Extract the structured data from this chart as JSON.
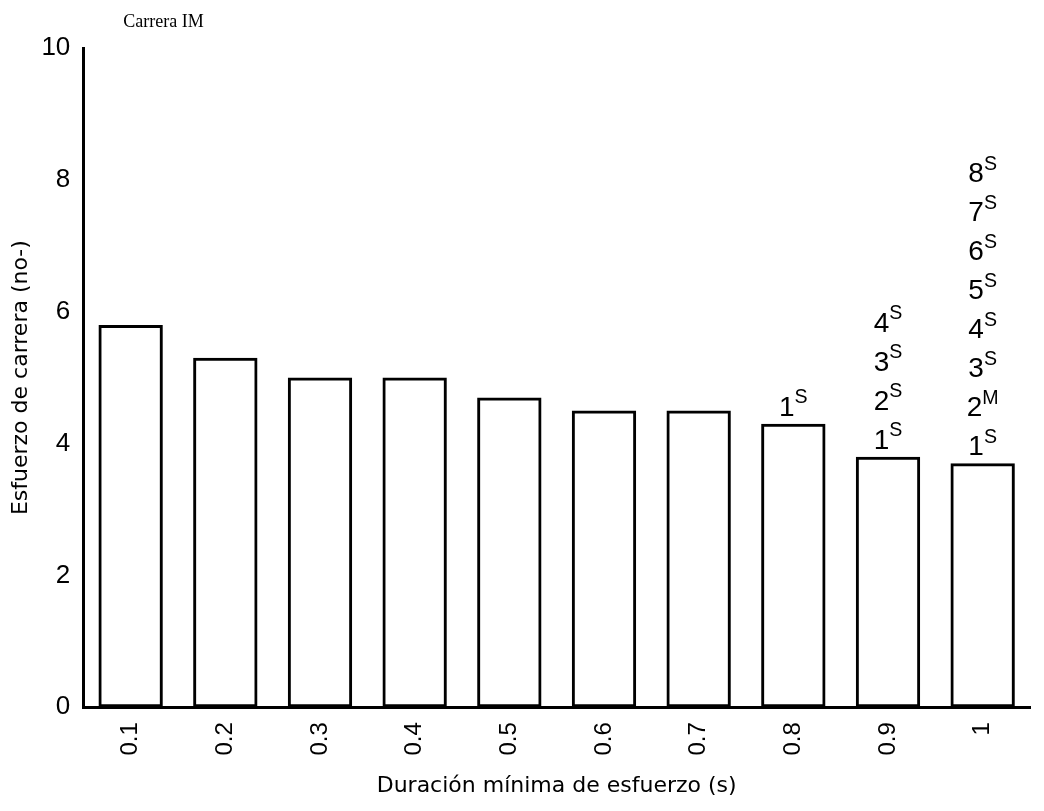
{
  "chart_data": {
    "type": "bar",
    "title": "Carrera IM",
    "xlabel": "Duración mínima de esfuerzo (s)",
    "ylabel": "Esfuerzo de carrera (no-)",
    "categories": [
      "0.1",
      "0.2",
      "0.3",
      "0.4",
      "0.5",
      "0.6",
      "0.7",
      "0.8",
      "0.9",
      "1"
    ],
    "values": [
      5.8,
      5.3,
      5.0,
      5.0,
      4.7,
      4.5,
      4.5,
      4.3,
      3.8,
      3.7
    ],
    "color": "#000000",
    "ylim": [
      0,
      10
    ],
    "yticks": [
      0,
      2,
      4,
      6,
      8,
      10
    ],
    "grid": false,
    "legend": false,
    "annotations": [
      {
        "text": "1$^{S}$",
        "x": "0.8",
        "y": 4.3
      },
      {
        "text": "4$^{S}$\n3$^{S}$\n2$^{S}$\n1$^{S}$",
        "x": "0.9",
        "y": 3.8
      },
      {
        "text": "4$^{S}$\n3$^{S}$\n2$^{M}$\n1$^{S}$",
        "x": "1",
        "y": 3.7
      },
      "8$^{S}$\n7$^{S}$\n6$^{S}$\n5$^{S}$"
    ]
  }
}
